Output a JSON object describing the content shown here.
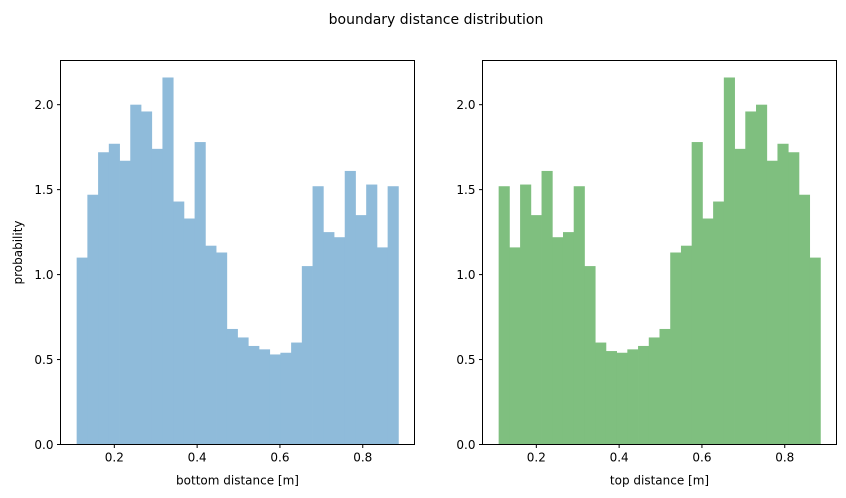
{
  "title": "boundary distance distribution",
  "chart_data": [
    {
      "type": "bar",
      "xlabel": "bottom distance [m]",
      "ylabel": "probability",
      "xlim": [
        0.07,
        0.925
      ],
      "ylim": [
        0,
        2.26
      ],
      "xticks": [
        0.2,
        0.4,
        0.6,
        0.8
      ],
      "xtick_labels": [
        "0.2",
        "0.4",
        "0.6",
        "0.8"
      ],
      "yticks": [
        0.0,
        0.5,
        1.0,
        1.5,
        2.0
      ],
      "ytick_labels": [
        "0.0",
        "0.5",
        "1.0",
        "1.5",
        "2.0"
      ],
      "color": "#8fbbda",
      "bin_range": [
        0.109,
        0.886
      ],
      "values": [
        1.1,
        1.47,
        1.72,
        1.77,
        1.67,
        2.0,
        1.96,
        1.74,
        2.16,
        1.43,
        1.33,
        1.78,
        1.17,
        1.13,
        0.68,
        0.63,
        0.58,
        0.56,
        0.53,
        0.54,
        0.6,
        1.05,
        1.52,
        1.25,
        1.22,
        1.61,
        1.35,
        1.53,
        1.16,
        1.52
      ]
    },
    {
      "type": "bar",
      "xlabel": "top distance [m]",
      "ylabel": "",
      "xlim": [
        0.07,
        0.925
      ],
      "ylim": [
        0,
        2.26
      ],
      "xticks": [
        0.2,
        0.4,
        0.6,
        0.8
      ],
      "xtick_labels": [
        "0.2",
        "0.4",
        "0.6",
        "0.8"
      ],
      "yticks": [
        0.0,
        0.5,
        1.0,
        1.5,
        2.0
      ],
      "ytick_labels": [
        "0.0",
        "0.5",
        "1.0",
        "1.5",
        "2.0"
      ],
      "color": "#7fbf7f",
      "bin_range": [
        0.109,
        0.886
      ],
      "values": [
        1.52,
        1.16,
        1.53,
        1.35,
        1.61,
        1.22,
        1.25,
        1.52,
        1.05,
        0.6,
        0.55,
        0.54,
        0.56,
        0.58,
        0.63,
        0.68,
        1.13,
        1.17,
        1.78,
        1.33,
        1.43,
        2.16,
        1.74,
        1.96,
        2.0,
        1.67,
        1.77,
        1.72,
        1.47,
        1.1
      ]
    }
  ]
}
